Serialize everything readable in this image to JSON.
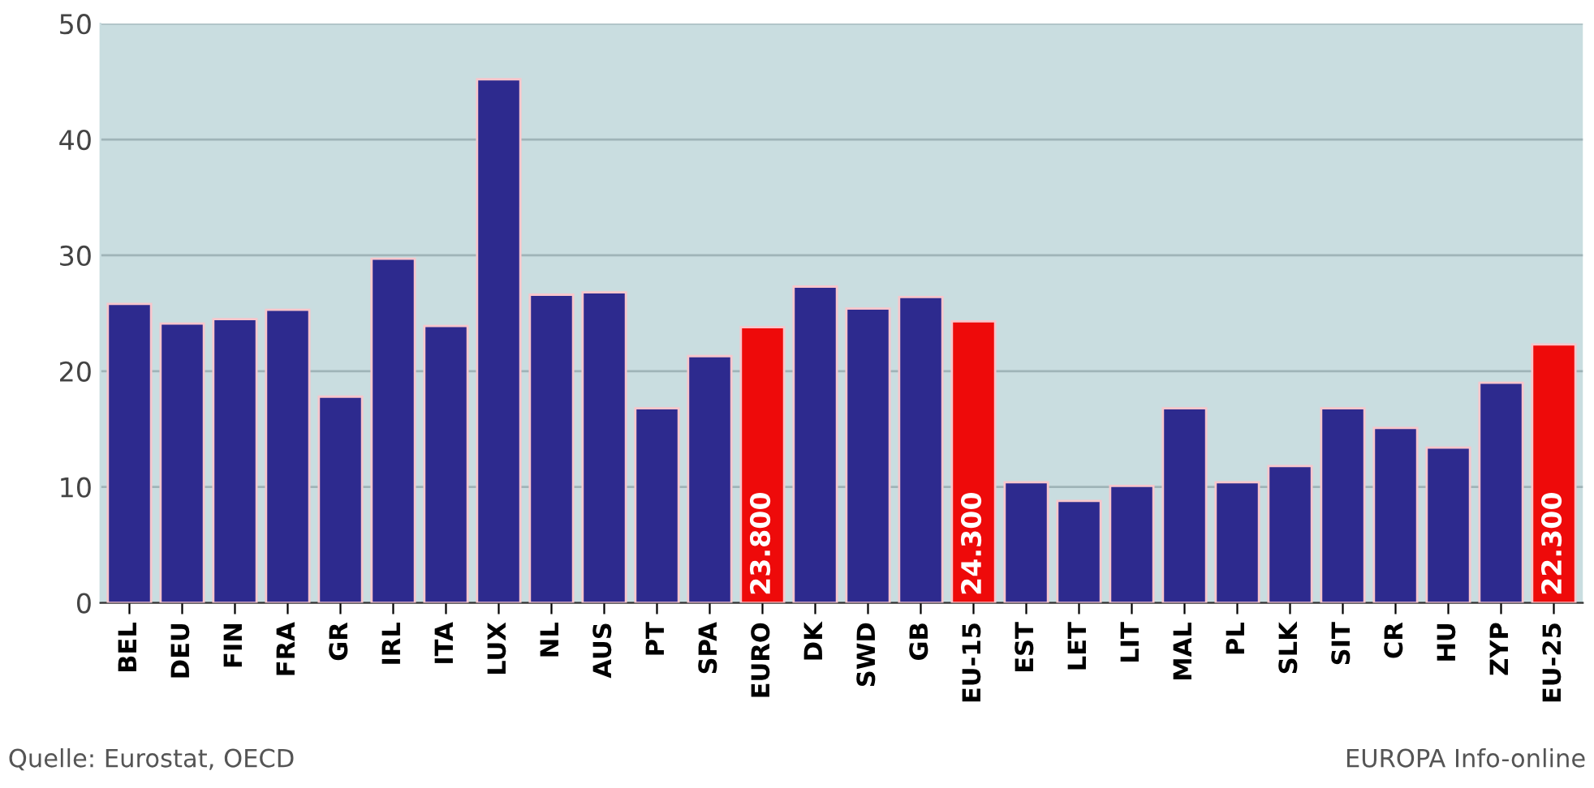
{
  "chart_data": {
    "type": "bar",
    "categories": [
      "BEL",
      "DEU",
      "FIN",
      "FRA",
      "GR",
      "IRL",
      "ITA",
      "LUX",
      "NL",
      "AUS",
      "PT",
      "SPA",
      "EURO",
      "DK",
      "SWD",
      "GB",
      "EU-15",
      "EST",
      "LET",
      "LIT",
      "MAL",
      "PL",
      "SLK",
      "SIT",
      "CR",
      "HU",
      "ZYP",
      "EU-25"
    ],
    "values": [
      25.8,
      24.1,
      24.5,
      25.3,
      17.8,
      29.7,
      23.9,
      45.2,
      26.6,
      26.8,
      16.8,
      21.3,
      23.8,
      27.3,
      25.4,
      26.4,
      24.3,
      10.4,
      8.8,
      10.1,
      16.8,
      10.4,
      11.8,
      16.8,
      15.1,
      13.4,
      19.0,
      22.3
    ],
    "colors": [
      "#2d2a8e",
      "#2d2a8e",
      "#2d2a8e",
      "#2d2a8e",
      "#2d2a8e",
      "#2d2a8e",
      "#2d2a8e",
      "#2d2a8e",
      "#2d2a8e",
      "#2d2a8e",
      "#2d2a8e",
      "#2d2a8e",
      "#ee0a0a",
      "#2d2a8e",
      "#2d2a8e",
      "#2d2a8e",
      "#ee0a0a",
      "#2d2a8e",
      "#2d2a8e",
      "#2d2a8e",
      "#2d2a8e",
      "#2d2a8e",
      "#2d2a8e",
      "#2d2a8e",
      "#2d2a8e",
      "#2d2a8e",
      "#2d2a8e",
      "#ee0a0a"
    ],
    "value_labels": [
      null,
      null,
      null,
      null,
      null,
      null,
      null,
      null,
      null,
      null,
      null,
      null,
      "23.800",
      null,
      null,
      null,
      "24.300",
      null,
      null,
      null,
      null,
      null,
      null,
      null,
      null,
      null,
      null,
      "22.300"
    ],
    "ylim": [
      0,
      50
    ],
    "yticks": [
      0,
      10,
      20,
      30,
      40,
      50
    ],
    "grid": "y",
    "annotations": [
      "Quelle: Eurostat, OECD",
      "EUROPA Info-online"
    ]
  }
}
